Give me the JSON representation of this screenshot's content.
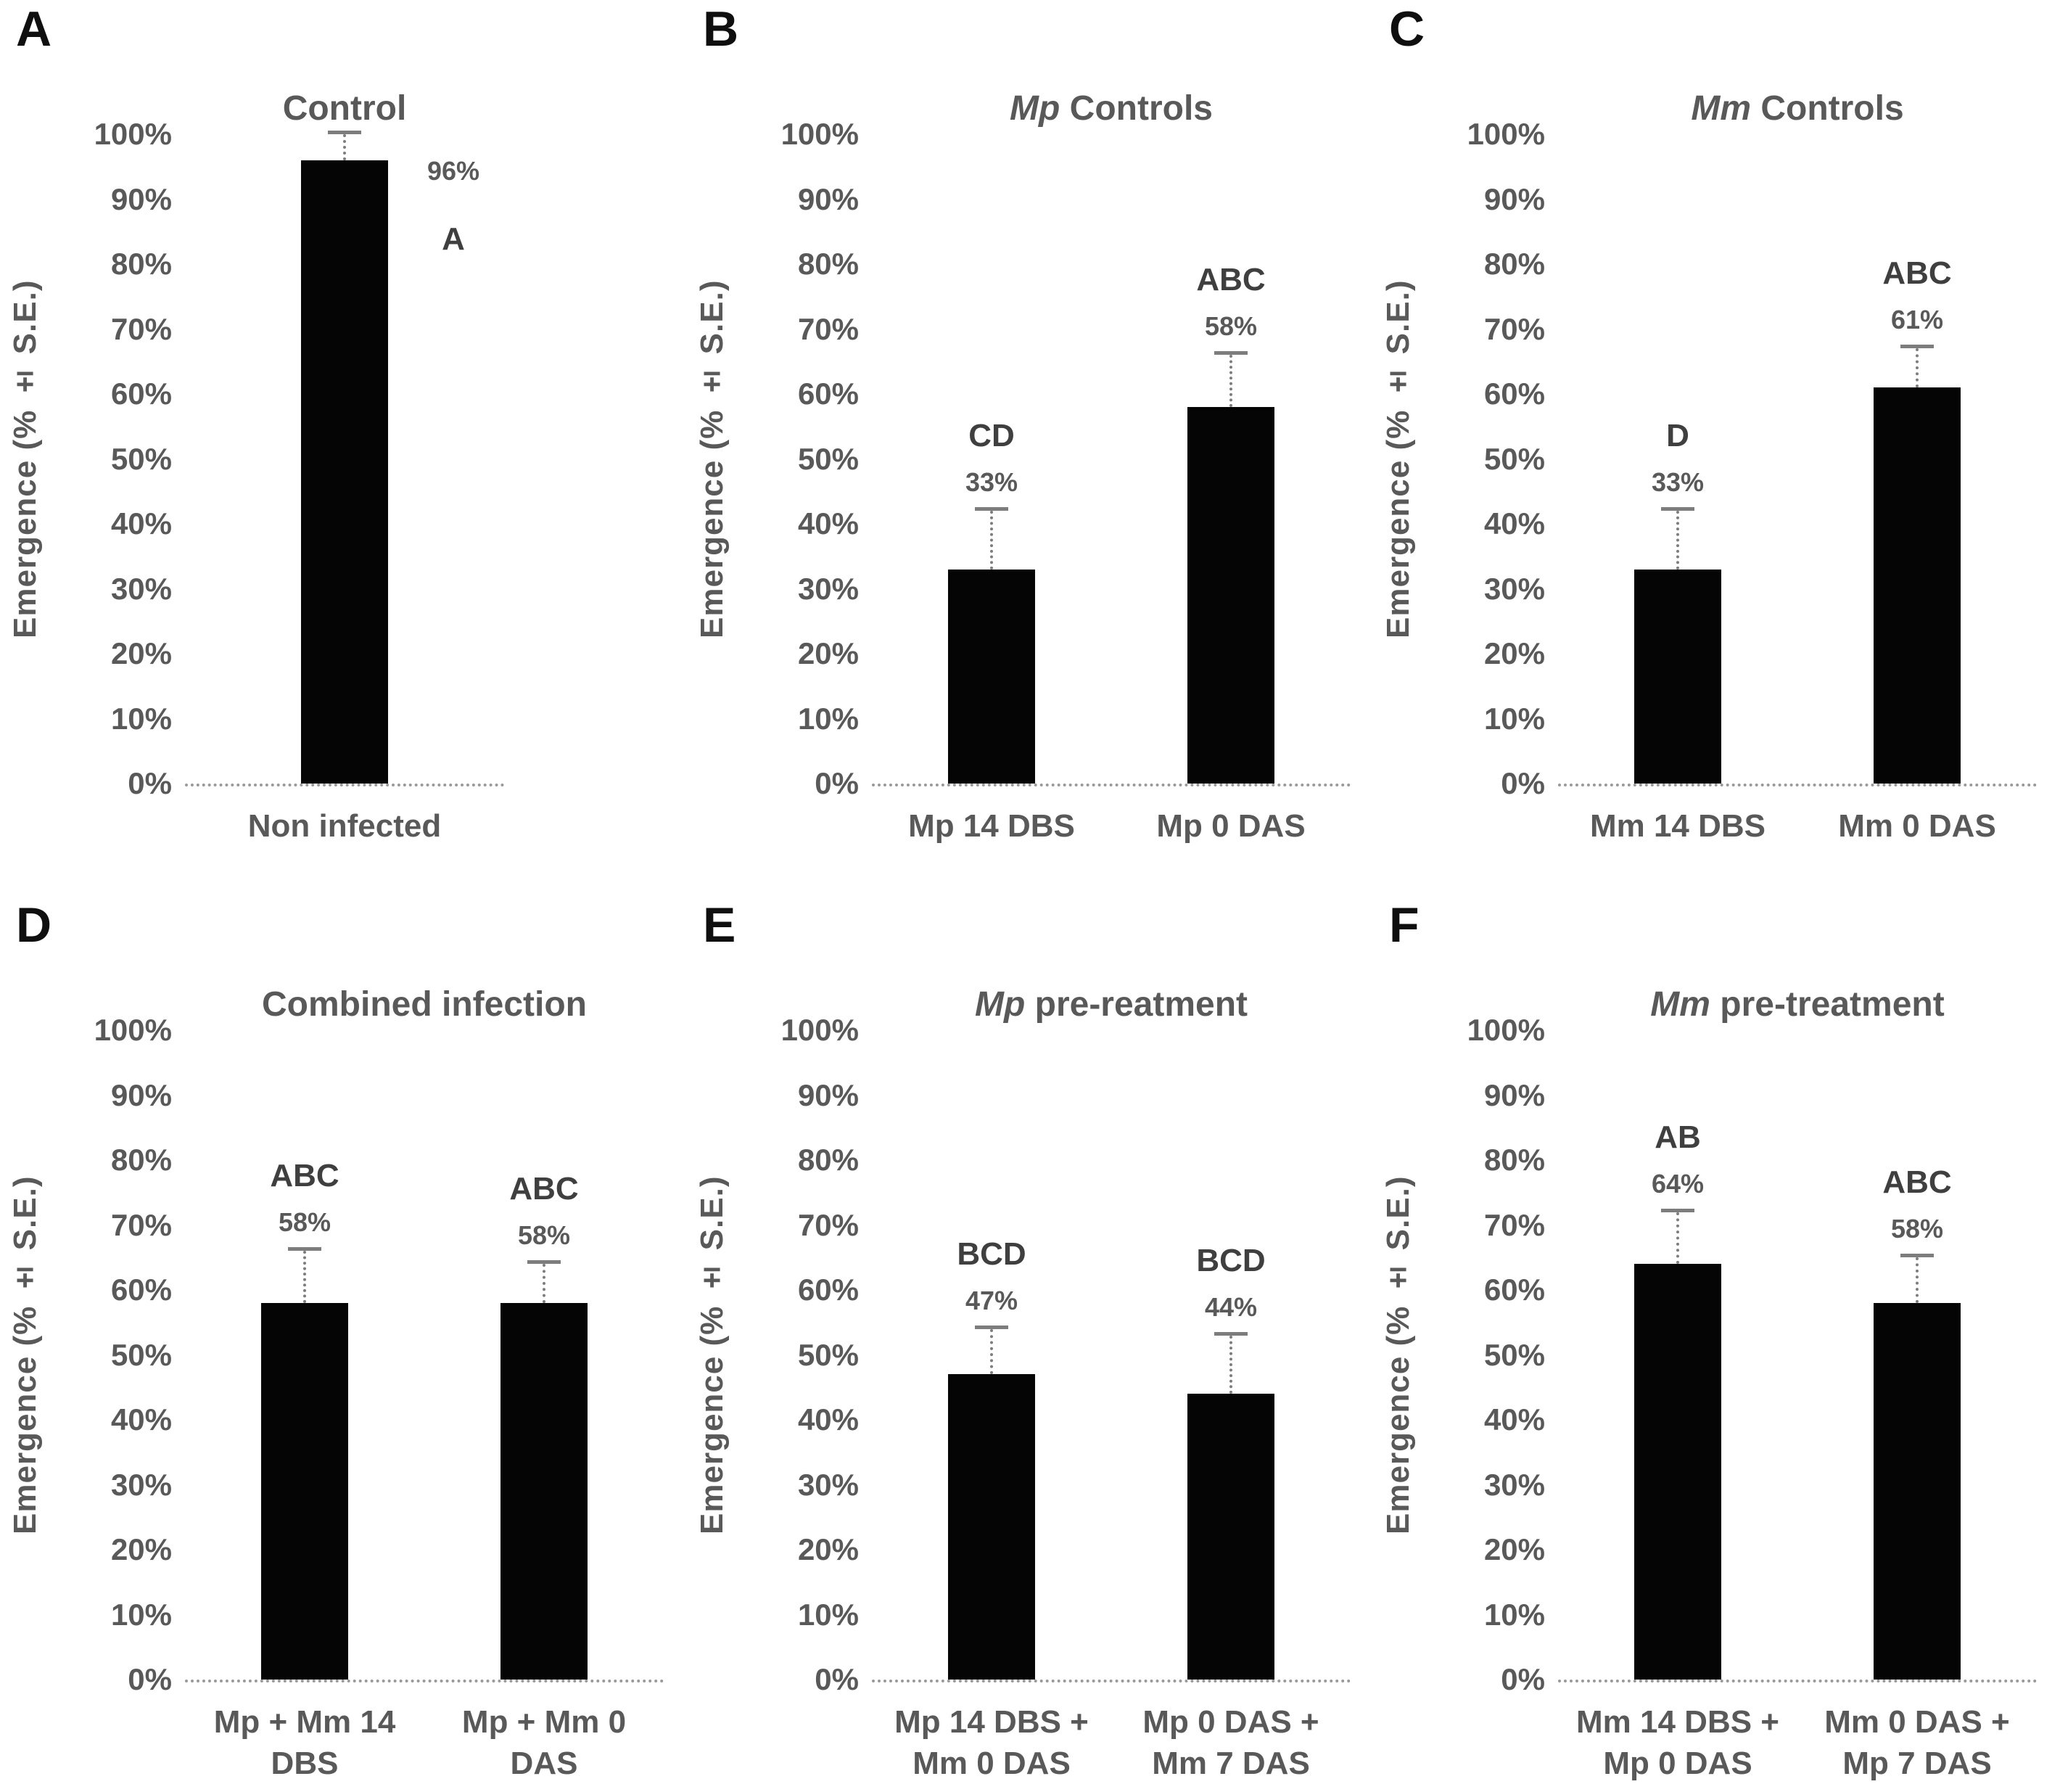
{
  "figure": {
    "y_axis_title": "Emergence (% ± S.E.)",
    "y_tick_labels": [
      "100%",
      "90%",
      "80%",
      "70%",
      "60%",
      "50%",
      "40%",
      "30%",
      "20%",
      "10%",
      "0%"
    ],
    "bar_color": "#050505",
    "error_bar_color": "#7d7d7d",
    "text_color": "#595959"
  },
  "chart_data": [
    {
      "type": "bar",
      "panel_letter": "A",
      "title_italic": "",
      "title": "Control",
      "ylabel": "Emergence (% ± S.E.)",
      "ylim": [
        0,
        100
      ],
      "grid": false,
      "categories": [
        "Non infected"
      ],
      "values": [
        96
      ],
      "error_bar_tops": [
        100
      ],
      "value_labels": [
        "96%"
      ],
      "sig_letters": [
        "A"
      ],
      "label_side": "right"
    },
    {
      "type": "bar",
      "panel_letter": "B",
      "title_italic": "Mp",
      "title": " Controls",
      "ylabel": "Emergence (% ± S.E.)",
      "ylim": [
        0,
        100
      ],
      "grid": false,
      "categories": [
        "Mp 14 DBS",
        "Mp 0 DAS"
      ],
      "values": [
        33,
        58
      ],
      "error_bar_tops": [
        42,
        66
      ],
      "value_labels": [
        "33%",
        "58%"
      ],
      "sig_letters": [
        "CD",
        "ABC"
      ],
      "label_side": "above"
    },
    {
      "type": "bar",
      "panel_letter": "C",
      "title_italic": "Mm",
      "title": " Controls",
      "ylabel": "Emergence (% ± S.E.)",
      "ylim": [
        0,
        100
      ],
      "grid": false,
      "categories": [
        "Mm 14 DBS",
        "Mm 0 DAS"
      ],
      "values": [
        33,
        61
      ],
      "error_bar_tops": [
        42,
        67
      ],
      "value_labels": [
        "33%",
        "61%"
      ],
      "sig_letters": [
        "D",
        "ABC"
      ],
      "label_side": "above"
    },
    {
      "type": "bar",
      "panel_letter": "D",
      "title_italic": "",
      "title": "Combined infection",
      "ylabel": "Emergence (% ± S.E.)",
      "ylim": [
        0,
        100
      ],
      "grid": false,
      "categories": [
        "Mp + Mm 14\nDBS",
        "Mp + Mm 0\nDAS"
      ],
      "values": [
        58,
        58
      ],
      "error_bar_tops": [
        66,
        64
      ],
      "value_labels": [
        "58%",
        "58%"
      ],
      "sig_letters": [
        "ABC",
        "ABC"
      ],
      "label_side": "above"
    },
    {
      "type": "bar",
      "panel_letter": "E",
      "title_italic": "Mp",
      "title": " pre-reatment",
      "ylabel": "Emergence (% ± S.E.)",
      "ylim": [
        0,
        100
      ],
      "grid": false,
      "categories": [
        "Mp 14 DBS +\nMm 0 DAS",
        "Mp 0 DAS +\nMm 7 DAS"
      ],
      "values": [
        47,
        44
      ],
      "error_bar_tops": [
        54,
        53
      ],
      "value_labels": [
        "47%",
        "44%"
      ],
      "sig_letters": [
        "BCD",
        "BCD"
      ],
      "label_side": "above"
    },
    {
      "type": "bar",
      "panel_letter": "F",
      "title_italic": "Mm",
      "title": " pre-treatment",
      "ylabel": "Emergence (% ± S.E.)",
      "ylim": [
        0,
        100
      ],
      "grid": false,
      "categories": [
        "Mm 14 DBS +\nMp 0 DAS",
        "Mm 0 DAS +\nMp 7 DAS"
      ],
      "values": [
        64,
        58
      ],
      "error_bar_tops": [
        72,
        65
      ],
      "value_labels": [
        "64%",
        "58%"
      ],
      "sig_letters": [
        "AB",
        "ABC"
      ],
      "label_side": "above"
    }
  ]
}
